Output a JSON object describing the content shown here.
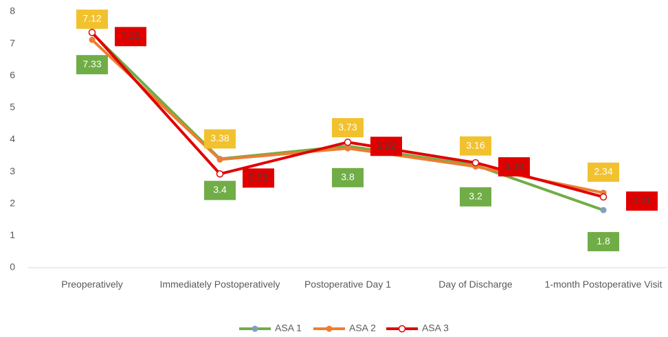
{
  "chart_data": {
    "type": "line",
    "categories": [
      "Preoperatively",
      "Immediately Postoperatively",
      "Postoperative Day 1",
      "Day of Discharge",
      "1-month Postoperative Visit"
    ],
    "series": [
      {
        "name": "ASA 1",
        "color": "#70ad47",
        "marker_color": "#7f9fbf",
        "values": [
          7.33,
          3.4,
          3.8,
          3.2,
          1.8
        ]
      },
      {
        "name": "ASA 2",
        "color": "#ed7d31",
        "marker_color": "#ed7d31",
        "values": [
          7.12,
          3.38,
          3.73,
          3.16,
          2.34
        ]
      },
      {
        "name": "ASA 3",
        "color": "#e00000",
        "marker_color": "#ffffff",
        "values": [
          7.35,
          2.93,
          3.92,
          3.28,
          2.21
        ]
      }
    ],
    "label_colors": [
      "#70ad47",
      "#f2c12e",
      "#e00000"
    ],
    "ylim": [
      0,
      8
    ],
    "yticks": [
      0,
      1,
      2,
      3,
      4,
      5,
      6,
      7,
      8
    ],
    "grid": false,
    "legend": "bottom"
  }
}
